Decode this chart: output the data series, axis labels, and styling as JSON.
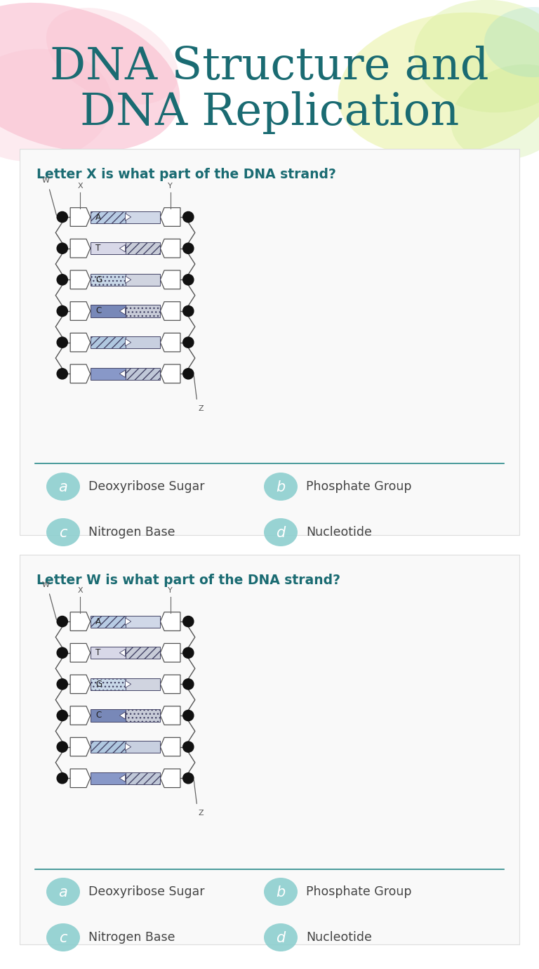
{
  "title_line1": "DNA Structure and",
  "title_line2": "DNA Replication",
  "title_color": "#1a6b72",
  "question1": "Letter X is what part of the DNA strand?",
  "question2": "Letter W is what part of the DNA strand?",
  "question_color": "#1a6b72",
  "choices": [
    "Deoxyribose Sugar",
    "Phosphate Group",
    "Nitrogen Base",
    "Nucleotide"
  ],
  "choice_labels": [
    "a",
    "b",
    "c",
    "d"
  ],
  "choice_bubble_color": "#8ecfcf",
  "choice_text_color": "#444444",
  "separator_color": "#2a8a8a",
  "section_bg": "#f7f7f7",
  "dna_bases": [
    "A",
    "T",
    "G",
    "C",
    "",
    ""
  ],
  "base_left_colors": [
    "#b8cce4",
    "#c8c8d8",
    "#d8d8e8",
    "#8090b8",
    "#b8cce4",
    "#8090b8"
  ],
  "base_right_colors": [
    "#d0d8e8",
    "#d0d0d8",
    "#d8d8e8",
    "#d0d0e0",
    "#d0d8e8",
    "#d0d0e0"
  ],
  "base_hatch_left": [
    "///",
    "",
    "....",
    "",
    "///",
    ""
  ],
  "base_hatch_right": [
    "",
    "///",
    "",
    "....",
    "",
    "///"
  ]
}
